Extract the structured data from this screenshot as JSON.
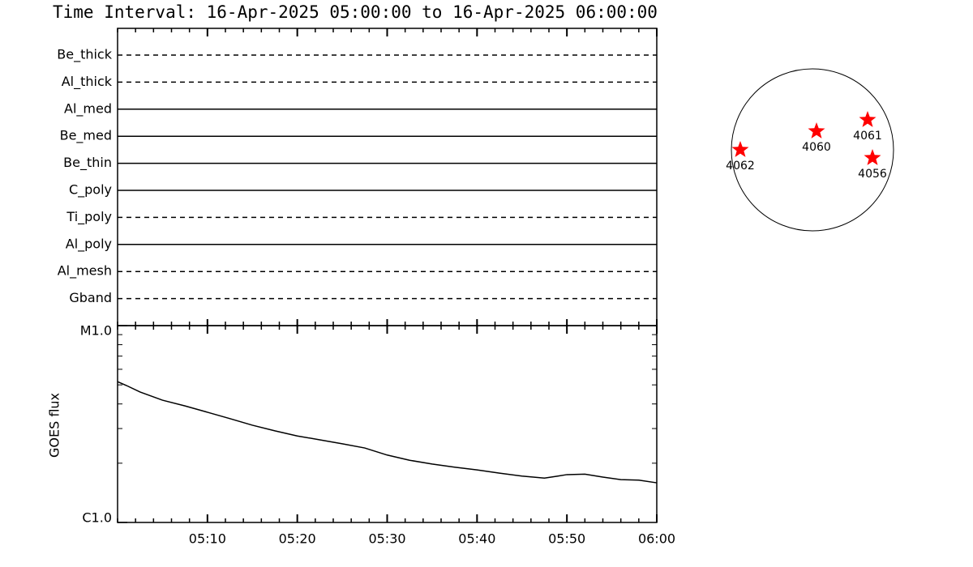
{
  "header": {
    "title": "Time Interval: 16-Apr-2025 05:00:00 to 16-Apr-2025 06:00:00"
  },
  "filters": [
    {
      "label": "Be_thick",
      "style": "dashed"
    },
    {
      "label": "Al_thick",
      "style": "dashed"
    },
    {
      "label": "Al_med",
      "style": "solid"
    },
    {
      "label": "Be_med",
      "style": "solid"
    },
    {
      "label": "Be_thin",
      "style": "solid"
    },
    {
      "label": "C_poly",
      "style": "solid"
    },
    {
      "label": "Ti_poly",
      "style": "dashed"
    },
    {
      "label": "Al_poly",
      "style": "solid"
    },
    {
      "label": "Al_mesh",
      "style": "dashed"
    },
    {
      "label": "Gband",
      "style": "dashed"
    }
  ],
  "chart_data": {
    "type": "line",
    "y_label": "GOES flux",
    "color": "#000000",
    "x": [
      0,
      1,
      2.5,
      5,
      7.5,
      10,
      12.5,
      15,
      17.5,
      20,
      22.5,
      25,
      27.5,
      30,
      32.5,
      35,
      37.5,
      40,
      42.5,
      45,
      47.5,
      49,
      50,
      52,
      54,
      56,
      58,
      60
    ],
    "values": [
      5.19e-06,
      4.96e-06,
      4.6e-06,
      4.18e-06,
      3.91e-06,
      3.63e-06,
      3.37e-06,
      3.12e-06,
      2.92e-06,
      2.75e-06,
      2.63e-06,
      2.51e-06,
      2.39e-06,
      2.2e-06,
      2.07e-06,
      1.98e-06,
      1.91e-06,
      1.85e-06,
      1.78e-06,
      1.72e-06,
      1.68e-06,
      1.72e-06,
      1.75e-06,
      1.76e-06,
      1.7e-06,
      1.65e-06,
      1.64e-06,
      1.59e-06
    ],
    "xlim": [
      0,
      60
    ],
    "xticks": [
      {
        "value": 10,
        "label": "05:10"
      },
      {
        "value": 20,
        "label": "05:20"
      },
      {
        "value": 30,
        "label": "05:30"
      },
      {
        "value": 40,
        "label": "05:40"
      },
      {
        "value": 50,
        "label": "05:50"
      },
      {
        "value": 60,
        "label": "06:00"
      }
    ],
    "ylim": [
      1e-06,
      1e-05
    ],
    "yticks": [
      {
        "value": 1e-06,
        "label": "C1.0"
      },
      {
        "value": 1e-05,
        "label": "M1.0"
      }
    ],
    "log_scale": true
  },
  "sun": {
    "color": "#ff0000",
    "regions": [
      "4062",
      "4060",
      "4061",
      "4056"
    ]
  }
}
